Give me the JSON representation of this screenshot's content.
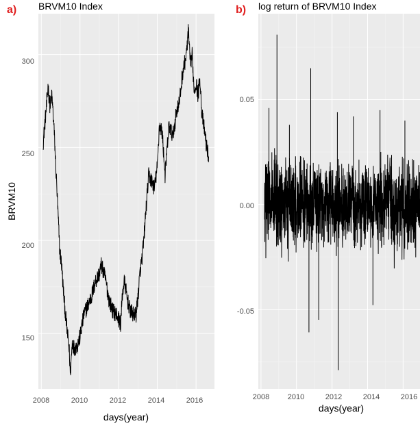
{
  "chart_data": [
    {
      "panel": "a)",
      "type": "line",
      "title": "BRVM10 Index",
      "xlabel": "days(year)",
      "ylabel": "BRVM10",
      "x_ticks": [
        "2008",
        "2010",
        "2012",
        "2014",
        "2016"
      ],
      "y_ticks": [
        "150",
        "200",
        "250",
        "300"
      ],
      "xlim": [
        2007.85,
        2016.95
      ],
      "ylim": [
        120,
        322
      ],
      "grid": true,
      "series": [
        {
          "x": [
            2008.1,
            2008.25,
            2008.35,
            2008.45,
            2008.55,
            2008.65,
            2008.75,
            2008.85,
            2008.95,
            2009.05,
            2009.15,
            2009.25,
            2009.35,
            2009.45,
            2009.5,
            2009.6,
            2009.7,
            2009.85,
            2010.0,
            2010.2,
            2010.4,
            2010.6,
            2010.8,
            2011.0,
            2011.1,
            2011.3,
            2011.5,
            2011.7,
            2011.9,
            2012.1,
            2012.2,
            2012.3,
            2012.45,
            2012.6,
            2012.75,
            2012.9,
            2013.0,
            2013.1,
            2013.2,
            2013.3,
            2013.4,
            2013.55,
            2013.7,
            2013.85,
            2014.0,
            2014.1,
            2014.25,
            2014.4,
            2014.6,
            2014.8,
            2015.0,
            2015.15,
            2015.3,
            2015.5,
            2015.6,
            2015.7,
            2015.8,
            2015.9,
            2016.0,
            2016.1,
            2016.2,
            2016.3,
            2016.45,
            2016.55,
            2016.65
          ],
          "y": [
            253,
            270,
            283,
            272,
            278,
            262,
            240,
            218,
            195,
            187,
            172,
            160,
            150,
            140,
            128,
            145,
            142,
            143,
            148,
            160,
            165,
            170,
            178,
            182,
            187,
            180,
            168,
            162,
            160,
            155,
            172,
            178,
            168,
            162,
            160,
            160,
            170,
            182,
            190,
            200,
            215,
            235,
            232,
            228,
            240,
            262,
            258,
            235,
            262,
            256,
            270,
            275,
            290,
            300,
            313,
            295,
            300,
            280,
            285,
            278,
            288,
            268,
            258,
            250,
            245
          ]
        }
      ]
    },
    {
      "panel": "b)",
      "type": "line",
      "title": "log return of BRVM10 Index",
      "xlabel": "days(year)",
      "ylabel": "",
      "x_ticks": [
        "2008",
        "2010",
        "2012",
        "2014",
        "2016"
      ],
      "y_ticks": [
        "-0.05",
        "0.00",
        "0.05"
      ],
      "xlim": [
        2007.85,
        2016.95
      ],
      "ylim": [
        -0.088,
        0.091
      ],
      "grid": true,
      "series": [
        {
          "note_extremes": "spikes read from figure",
          "spikes_x": [
            2008.45,
            2008.9,
            2009.6,
            2010.7,
            2010.8,
            2011.25,
            2012.3,
            2012.35,
            2013.2,
            2014.3,
            2014.7,
            2016.1
          ],
          "spikes_y": [
            0.046,
            0.081,
            0.038,
            -0.061,
            0.065,
            -0.055,
            0.044,
            -0.079,
            0.042,
            -0.048,
            0.045,
            0.04
          ]
        }
      ]
    }
  ]
}
